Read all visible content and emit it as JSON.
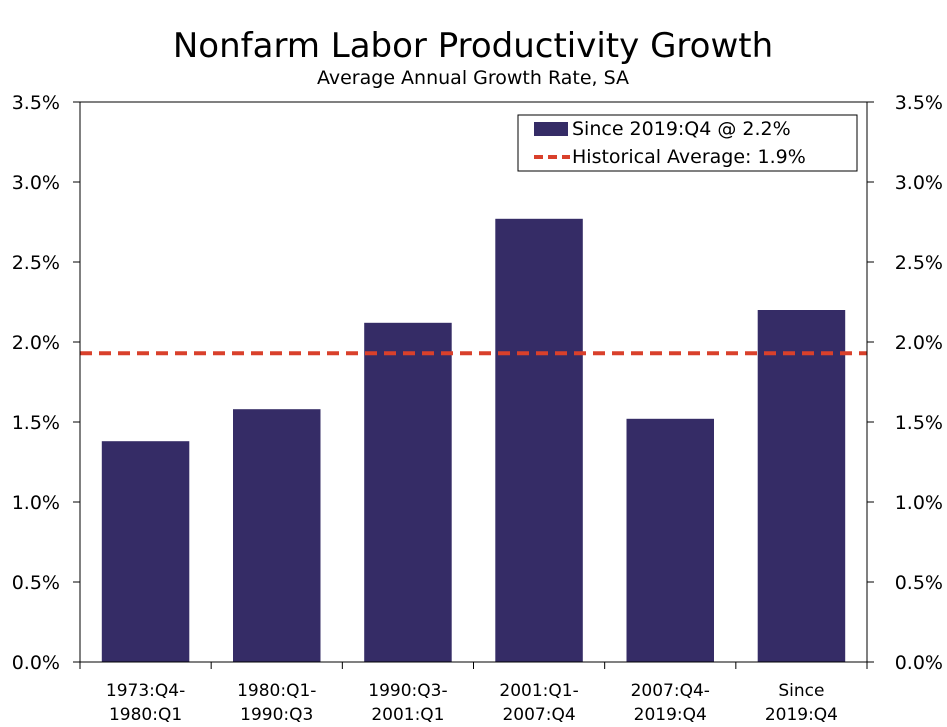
{
  "chart_data": {
    "type": "bar",
    "title": "Nonfarm Labor Productivity Growth",
    "subtitle": "Average Annual Growth Rate, SA",
    "categories": [
      [
        "1973:Q4-",
        "1980:Q1"
      ],
      [
        "1980:Q1-",
        "1990:Q3"
      ],
      [
        "1990:Q3-",
        "2001:Q1"
      ],
      [
        "2001:Q1-",
        "2007:Q4"
      ],
      [
        "2007:Q4-",
        "2019:Q4"
      ],
      [
        "Since",
        "2019:Q4"
      ]
    ],
    "values": [
      1.38,
      1.58,
      2.12,
      2.77,
      1.52,
      2.2
    ],
    "reference_line": {
      "name": "Historical Average: 1.9%",
      "value": 1.93
    },
    "legend": {
      "position": "top-right",
      "entries": [
        "Since 2019:Q4 @ 2.2%",
        "Historical Average: 1.9%"
      ]
    },
    "y_ticks": [
      "0.0%",
      "0.5%",
      "1.0%",
      "1.5%",
      "2.0%",
      "2.5%",
      "3.0%",
      "3.5%"
    ],
    "ylim": [
      0,
      3.5
    ],
    "ystep": 0.5,
    "xlabel": "",
    "ylabel": "",
    "grid": false,
    "colors": {
      "bar": "#352c66",
      "reference": "#d9402b",
      "axis": "#000000"
    }
  }
}
